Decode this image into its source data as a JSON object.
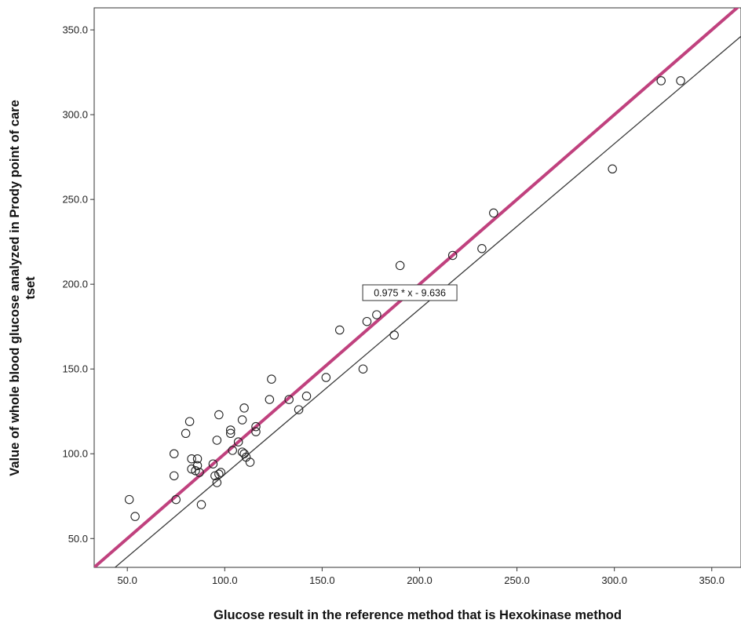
{
  "chart_data": {
    "type": "scatter",
    "title": "",
    "xlabel": "Glucose result in the reference method that is Hexokinase method",
    "ylabel": "Value of whole blood glucose analyzed in Prody point of care",
    "ylabel_line2": "tset",
    "xlim": [
      33,
      365
    ],
    "ylim": [
      33,
      363
    ],
    "x_ticks": [
      50,
      100,
      150,
      200,
      250,
      300,
      350
    ],
    "x_tick_labels": [
      "50.0",
      "100.0",
      "150.0",
      "200.0",
      "250.0",
      "300.0",
      "350.0"
    ],
    "y_ticks": [
      50,
      100,
      150,
      200,
      250,
      300,
      350
    ],
    "y_tick_labels": [
      "50.0",
      "100.0",
      "150.0",
      "200.0",
      "250.0",
      "300.0",
      "350.0"
    ],
    "grid": false,
    "points": [
      [
        51,
        73
      ],
      [
        54,
        63
      ],
      [
        74,
        100
      ],
      [
        74,
        87
      ],
      [
        75,
        73
      ],
      [
        80,
        112
      ],
      [
        82,
        119
      ],
      [
        83,
        97
      ],
      [
        83,
        91
      ],
      [
        85,
        90
      ],
      [
        86,
        93
      ],
      [
        86,
        97
      ],
      [
        87,
        89
      ],
      [
        88,
        70
      ],
      [
        94,
        94
      ],
      [
        95,
        87
      ],
      [
        96,
        108
      ],
      [
        96,
        83
      ],
      [
        97,
        123
      ],
      [
        97,
        88
      ],
      [
        98,
        89
      ],
      [
        103,
        112
      ],
      [
        103,
        114
      ],
      [
        104,
        102
      ],
      [
        107,
        107
      ],
      [
        109,
        101
      ],
      [
        109,
        120
      ],
      [
        110,
        100
      ],
      [
        110,
        127
      ],
      [
        111,
        98
      ],
      [
        113,
        95
      ],
      [
        116,
        116
      ],
      [
        116,
        113
      ],
      [
        123,
        132
      ],
      [
        124,
        144
      ],
      [
        133,
        132
      ],
      [
        138,
        126
      ],
      [
        142,
        134
      ],
      [
        152,
        145
      ],
      [
        159,
        173
      ],
      [
        171,
        150
      ],
      [
        173,
        178
      ],
      [
        178,
        182
      ],
      [
        187,
        170
      ],
      [
        190,
        211
      ],
      [
        217,
        217
      ],
      [
        232,
        221
      ],
      [
        238,
        242
      ],
      [
        299,
        268
      ],
      [
        324,
        320
      ],
      [
        334,
        320
      ]
    ],
    "lines": [
      {
        "kind": "fit",
        "slope": 0.975,
        "intercept": -9.636,
        "color": "#3a3a3a"
      },
      {
        "kind": "reference",
        "slope": 1,
        "intercept": 0,
        "color": "#c0417e"
      }
    ],
    "annotation": {
      "text": "0.975 * x - 9.636",
      "x": 195,
      "y": 195
    },
    "colors": {
      "points": "#222222",
      "axes": "#333333",
      "reference_line": "#c0417e",
      "fit_line": "#3a3a3a"
    }
  }
}
